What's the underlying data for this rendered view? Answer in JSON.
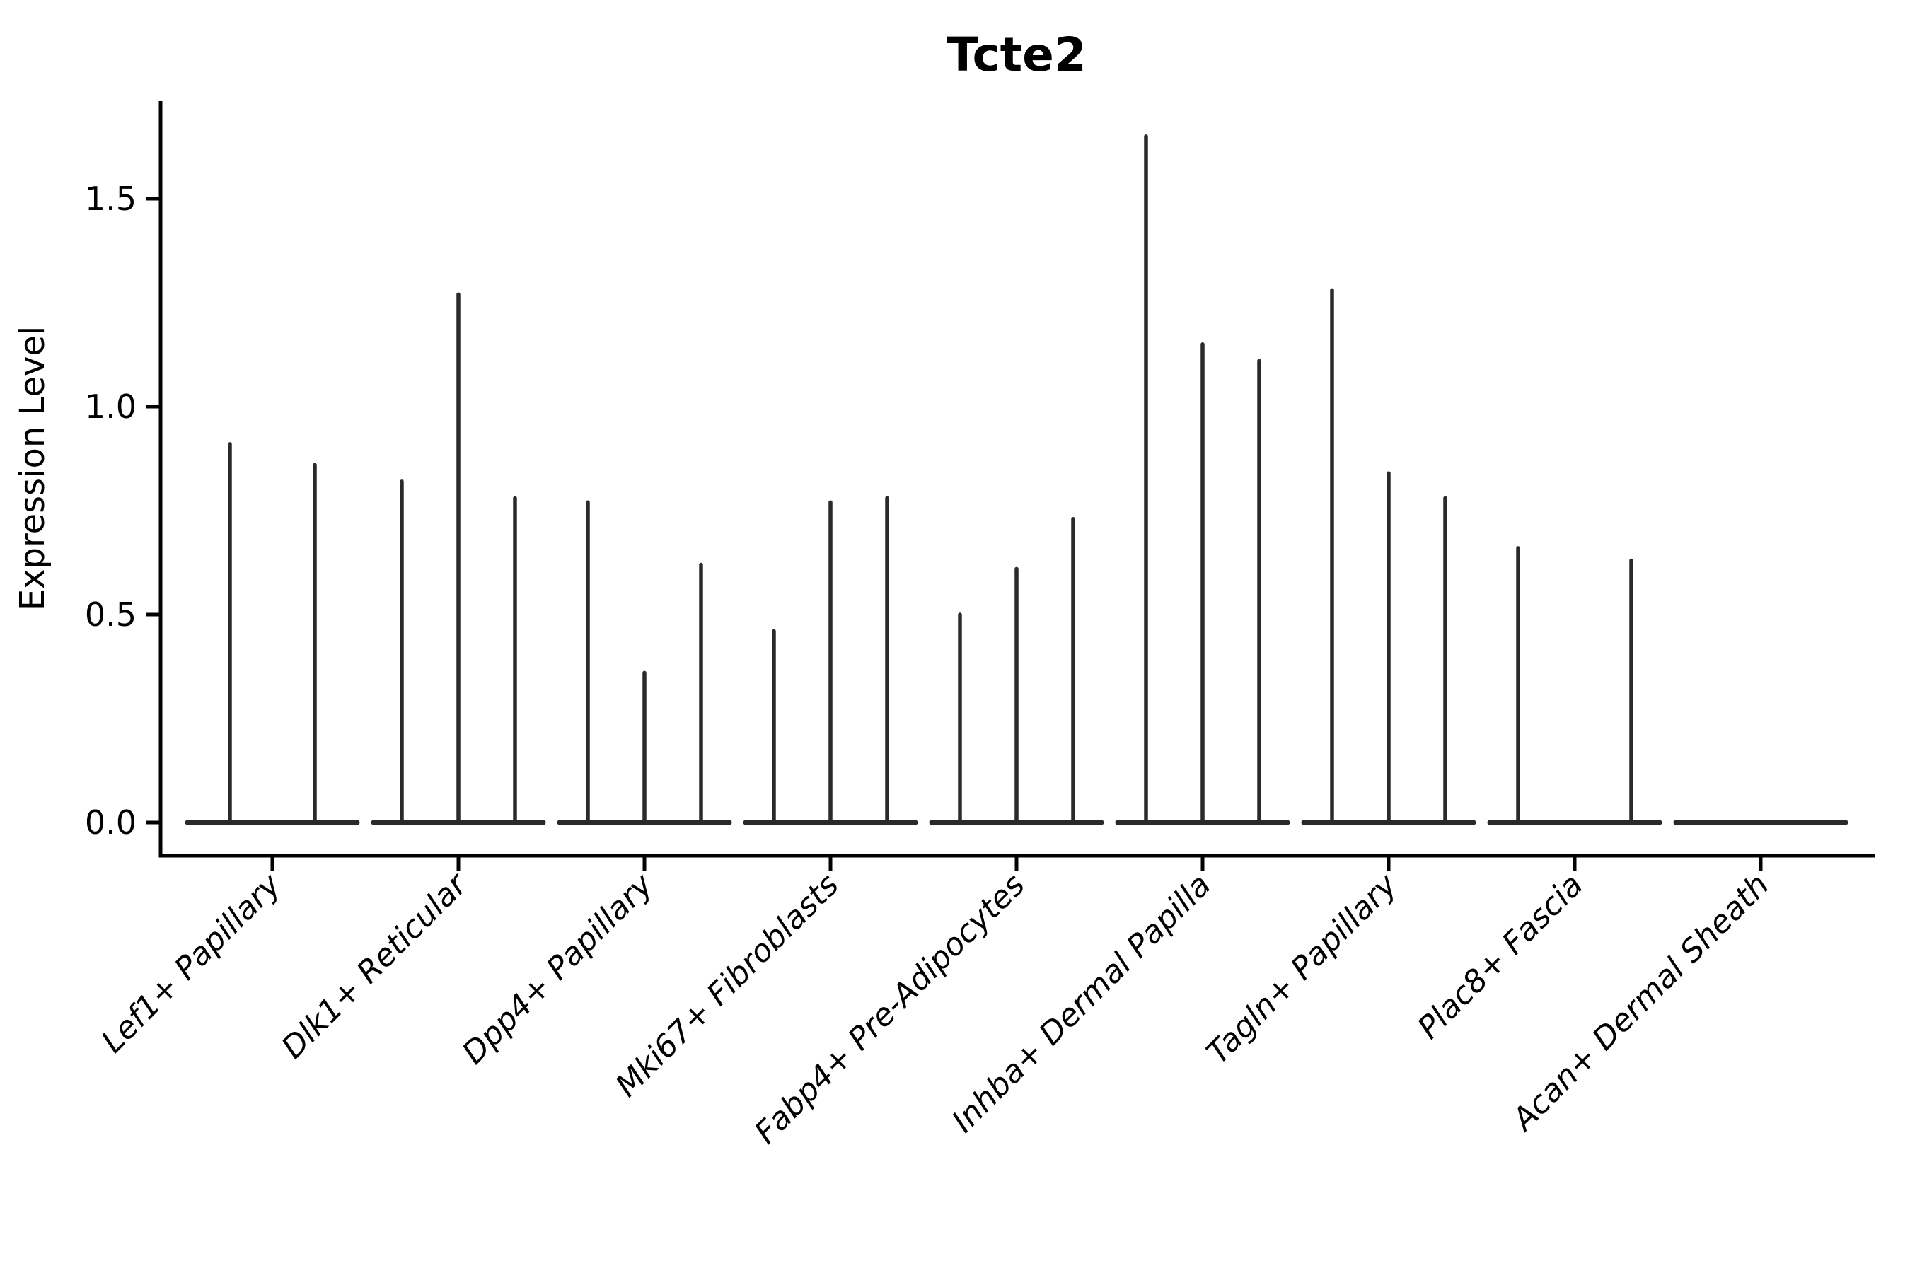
{
  "chart_data": {
    "type": "violin",
    "title": "Tcte2",
    "ylabel": "Expression Level",
    "xlabel": "",
    "ylim": [
      -0.08,
      1.74
    ],
    "yticks": [
      0.0,
      0.5,
      1.0,
      1.5
    ],
    "ytick_labels": [
      "0.0",
      "0.5",
      "1.0",
      "1.5"
    ],
    "grid": false,
    "legend": null,
    "categories": [
      "Lef1+ Papillary",
      "Dlk1+ Reticular",
      "Dpp4+ Papillary",
      "Mki67+ Fibroblasts",
      "Fabp4+ Pre-Adipocytes",
      "Inhba+ Dermal Papilla",
      "Tagln+ Papillary",
      "Plac8+ Fascia",
      "Acan+ Dermal Sheath"
    ],
    "groups": [
      {
        "label": "Lef1+ Papillary",
        "violin_maxima": [
          0.91,
          0.86
        ]
      },
      {
        "label": "Dlk1+ Reticular",
        "violin_maxima": [
          0.82,
          1.27,
          0.78
        ]
      },
      {
        "label": "Dpp4+ Papillary",
        "violin_maxima": [
          0.77,
          0.36,
          0.62
        ]
      },
      {
        "label": "Mki67+ Fibroblasts",
        "violin_maxima": [
          0.46,
          0.77,
          0.78
        ]
      },
      {
        "label": "Fabp4+ Pre-Adipocytes",
        "violin_maxima": [
          0.5,
          0.61,
          0.73
        ]
      },
      {
        "label": "Inhba+ Dermal Papilla",
        "violin_maxima": [
          1.65,
          1.15,
          1.11
        ]
      },
      {
        "label": "Tagln+ Papillary",
        "violin_maxima": [
          1.28,
          0.84,
          0.78
        ]
      },
      {
        "label": "Plac8+ Fascia",
        "violin_maxima": [
          0.66,
          0.0,
          0.63
        ]
      },
      {
        "label": "Acan+ Dermal Sheath",
        "violin_maxima": [
          0.0,
          0.0,
          0.0
        ]
      }
    ],
    "annotation": "Each category shows thin violins (sparse expression): a flat density pancake at 0 with a narrow central spike up to the max expression value.",
    "colors": {
      "violin_stroke": "#2a2a2a",
      "axis": "#000000",
      "background": "#ffffff"
    }
  }
}
